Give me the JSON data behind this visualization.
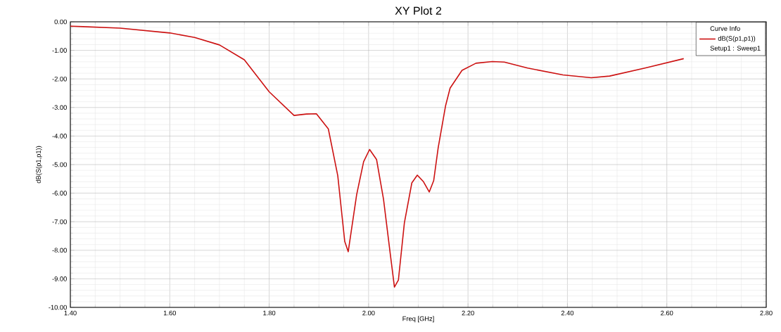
{
  "chart_data": {
    "type": "line",
    "title": "XY Plot 2",
    "xlabel": "Freq [GHz]",
    "ylabel": "dB(S(p1,p1))",
    "legend_title": "Curve Info",
    "annotations": [
      "Setup1 : Sweep1"
    ],
    "xlim": [
      1.4,
      2.8
    ],
    "ylim": [
      -10,
      0
    ],
    "xticks": [
      {
        "value": 1.4,
        "label": "1.40"
      },
      {
        "value": 1.6,
        "label": "1.60"
      },
      {
        "value": 1.8,
        "label": "1.80"
      },
      {
        "value": 2.0,
        "label": "2.00"
      },
      {
        "value": 2.2,
        "label": "2.20"
      },
      {
        "value": 2.4,
        "label": "2.40"
      },
      {
        "value": 2.6,
        "label": "2.60"
      },
      {
        "value": 2.8,
        "label": "2.80"
      }
    ],
    "yticks": [
      {
        "value": 0,
        "label": "0.00"
      },
      {
        "value": -1,
        "label": "-1.00"
      },
      {
        "value": -2,
        "label": "-2.00"
      },
      {
        "value": -3,
        "label": "-3.00"
      },
      {
        "value": -4,
        "label": "-4.00"
      },
      {
        "value": -5,
        "label": "-5.00"
      },
      {
        "value": -6,
        "label": "-6.00"
      },
      {
        "value": -7,
        "label": "-7.00"
      },
      {
        "value": -8,
        "label": "-8.00"
      },
      {
        "value": -9,
        "label": "-9.00"
      },
      {
        "value": -10,
        "label": "-10.00"
      }
    ],
    "grid": true,
    "legend": "top right",
    "marker": "none",
    "line_style": "solid",
    "series": [
      {
        "name": "dB(S(p1,p1))",
        "color": "#cc1111",
        "x": [
          1.4,
          1.5,
          1.6,
          1.65,
          1.7,
          1.75,
          1.8,
          1.85,
          1.875,
          1.895,
          1.919,
          1.938,
          1.952,
          1.959,
          1.976,
          1.99,
          2.002,
          2.016,
          2.03,
          2.044,
          2.052,
          2.06,
          2.072,
          2.087,
          2.098,
          2.11,
          2.122,
          2.131,
          2.14,
          2.155,
          2.164,
          2.188,
          2.216,
          2.249,
          2.273,
          2.32,
          2.391,
          2.448,
          2.485,
          2.556,
          2.634
        ],
        "values": [
          -0.15,
          -0.22,
          -0.39,
          -0.55,
          -0.81,
          -1.33,
          -2.45,
          -3.28,
          -3.23,
          -3.22,
          -3.75,
          -5.39,
          -7.69,
          -8.05,
          -6.05,
          -4.9,
          -4.47,
          -4.82,
          -6.21,
          -8.18,
          -9.29,
          -9.04,
          -7.04,
          -5.64,
          -5.37,
          -5.59,
          -5.96,
          -5.56,
          -4.41,
          -2.93,
          -2.32,
          -1.7,
          -1.45,
          -1.39,
          -1.41,
          -1.62,
          -1.86,
          -1.96,
          -1.9,
          -1.62,
          -1.29
        ]
      }
    ]
  }
}
